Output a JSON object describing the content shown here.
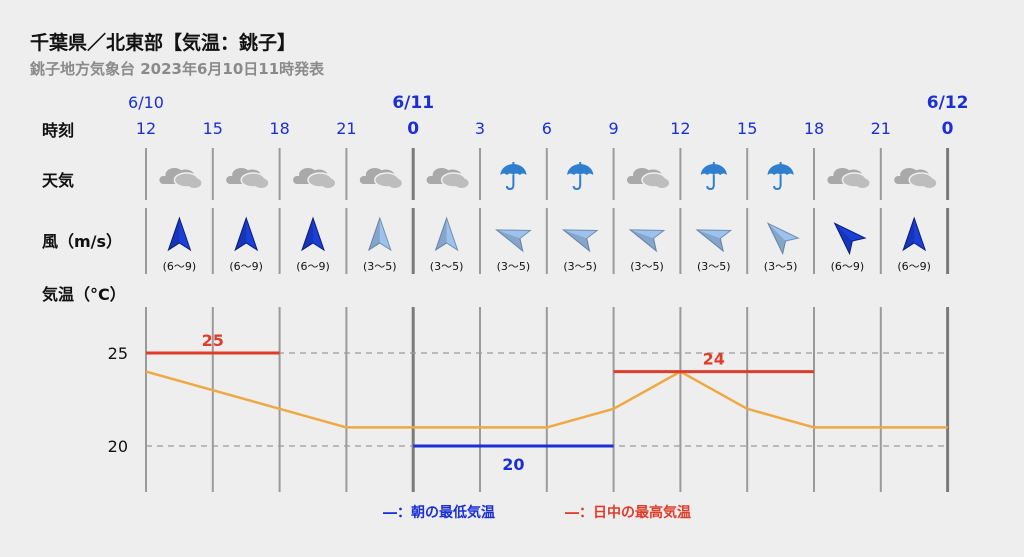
{
  "title": "千葉県／北東部【気温：銚子】",
  "subtitle": "銚子地方気象台 2023年6月10日11時発表",
  "row_labels": {
    "time": "時刻",
    "weather": "天気",
    "wind": "風（m/s）",
    "temp": "気温（°C）"
  },
  "colors": {
    "blue": "#1a2fd6",
    "red": "#e03c2a",
    "orange": "#f0a843",
    "umbrella": "#2f7fd0",
    "cloud": "#a9a9a9"
  },
  "chart_data": {
    "type": "line",
    "dates": [
      {
        "label": "6/10",
        "index": 0,
        "bold": false
      },
      {
        "label": "6/11",
        "index": 4,
        "bold": true
      },
      {
        "label": "6/12",
        "index": 12,
        "bold": true
      }
    ],
    "times": [
      {
        "label": "12",
        "bold": false
      },
      {
        "label": "15",
        "bold": false
      },
      {
        "label": "18",
        "bold": false
      },
      {
        "label": "21",
        "bold": false
      },
      {
        "label": "0",
        "bold": true
      },
      {
        "label": "3",
        "bold": false
      },
      {
        "label": "6",
        "bold": false
      },
      {
        "label": "9",
        "bold": false
      },
      {
        "label": "12",
        "bold": false
      },
      {
        "label": "15",
        "bold": false
      },
      {
        "label": "18",
        "bold": false
      },
      {
        "label": "21",
        "bold": false
      },
      {
        "label": "0",
        "bold": true
      }
    ],
    "weather": [
      "cloudy-icon",
      "cloudy-icon",
      "cloudy-icon",
      "cloudy-icon",
      "cloudy-icon",
      "rain-icon",
      "rain-icon",
      "cloudy-icon",
      "rain-icon",
      "rain-icon",
      "cloudy-icon",
      "cloudy-icon"
    ],
    "wind": [
      {
        "direction_deg": 0,
        "range": "(6〜9)",
        "strong": true
      },
      {
        "direction_deg": 0,
        "range": "(6〜9)",
        "strong": true
      },
      {
        "direction_deg": 0,
        "range": "(6〜9)",
        "strong": true
      },
      {
        "direction_deg": 0,
        "range": "(3〜5)",
        "strong": false
      },
      {
        "direction_deg": 0,
        "range": "(3〜5)",
        "strong": false
      },
      {
        "direction_deg": 290,
        "range": "(3〜5)",
        "strong": false
      },
      {
        "direction_deg": 290,
        "range": "(3〜5)",
        "strong": false
      },
      {
        "direction_deg": 290,
        "range": "(3〜5)",
        "strong": false
      },
      {
        "direction_deg": 290,
        "range": "(3〜5)",
        "strong": false
      },
      {
        "direction_deg": 315,
        "range": "(3〜5)",
        "strong": false
      },
      {
        "direction_deg": 315,
        "range": "(6〜9)",
        "strong": true
      },
      {
        "direction_deg": 0,
        "range": "(6〜9)",
        "strong": true
      }
    ],
    "yticks": [
      20,
      25
    ],
    "ylim": [
      17.6,
      27.6
    ],
    "temperature": [
      24,
      23,
      22,
      21,
      21,
      21,
      21,
      22,
      24,
      22,
      21,
      21,
      21
    ],
    "max_temps": [
      {
        "value": 25,
        "label": "25",
        "start": 0,
        "end": 2
      },
      {
        "value": 24,
        "label": "24",
        "start": 7,
        "end": 10
      }
    ],
    "min_temps": [
      {
        "value": 20,
        "label": "20",
        "start": 4,
        "end": 7
      }
    ],
    "legend": {
      "min": "―：朝の最低気温",
      "max": "―：日中の最高気温"
    }
  }
}
